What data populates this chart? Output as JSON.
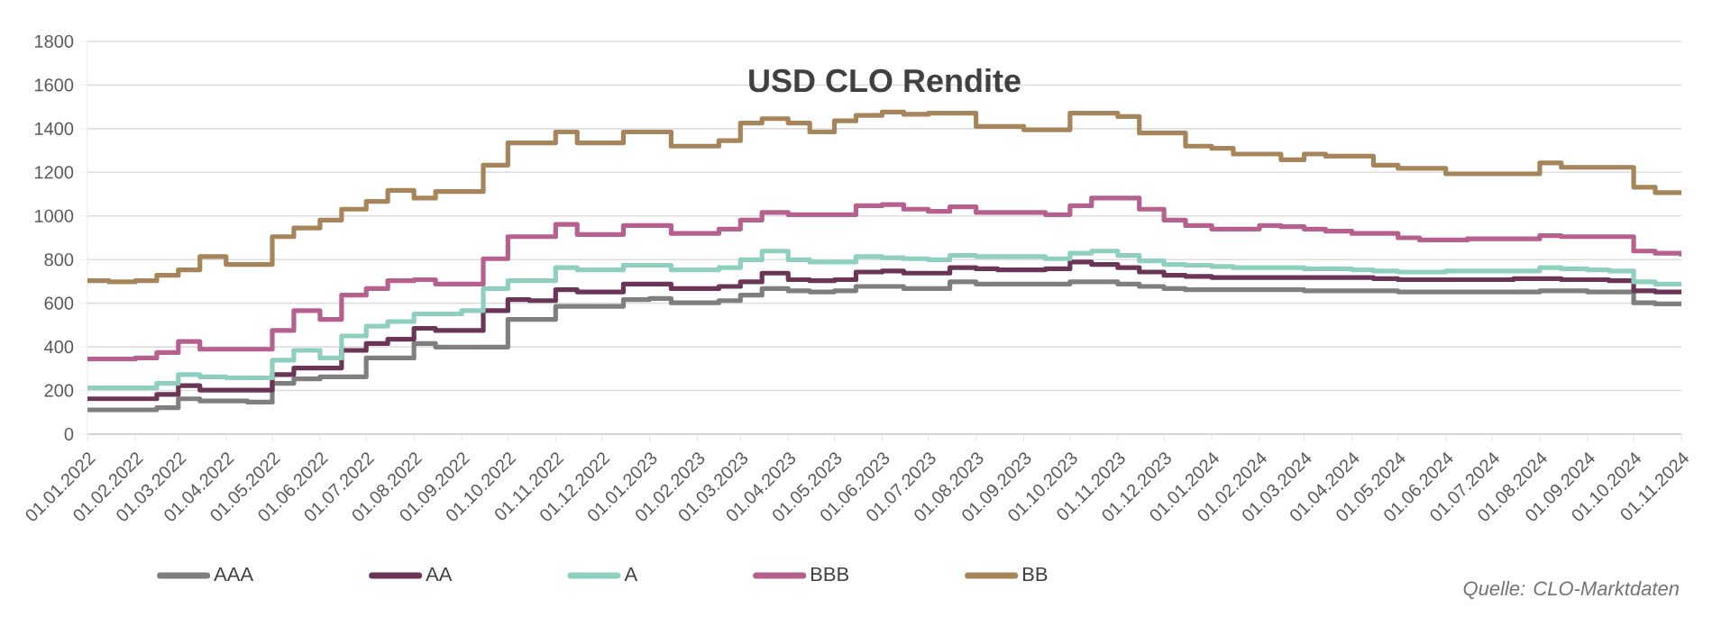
{
  "chart_data": {
    "type": "step",
    "title": "USD CLO Rendite",
    "x": [
      "2022-01-01",
      "2022-01-15",
      "2022-02-01",
      "2022-02-15",
      "2022-03-01",
      "2022-03-15",
      "2022-04-01",
      "2022-04-15",
      "2022-05-01",
      "2022-05-15",
      "2022-06-01",
      "2022-06-15",
      "2022-07-01",
      "2022-07-15",
      "2022-08-01",
      "2022-08-15",
      "2022-09-01",
      "2022-09-15",
      "2022-10-01",
      "2022-10-15",
      "2022-11-01",
      "2022-11-15",
      "2022-12-01",
      "2022-12-15",
      "2023-01-01",
      "2023-01-15",
      "2023-02-01",
      "2023-02-15",
      "2023-03-01",
      "2023-03-15",
      "2023-04-01",
      "2023-04-15",
      "2023-05-01",
      "2023-05-15",
      "2023-06-01",
      "2023-06-15",
      "2023-07-01",
      "2023-07-15",
      "2023-08-01",
      "2023-08-15",
      "2023-09-01",
      "2023-09-15",
      "2023-10-01",
      "2023-10-15",
      "2023-11-01",
      "2023-11-15",
      "2023-12-01",
      "2023-12-15",
      "2024-01-01",
      "2024-01-15",
      "2024-02-01",
      "2024-02-15",
      "2024-03-01",
      "2024-03-15",
      "2024-04-01",
      "2024-04-15",
      "2024-05-01",
      "2024-05-15",
      "2024-06-01",
      "2024-06-15",
      "2024-07-01",
      "2024-07-15",
      "2024-08-01",
      "2024-08-15",
      "2024-09-01",
      "2024-09-15",
      "2024-10-01",
      "2024-10-15",
      "2024-11-01"
    ],
    "series": [
      {
        "name": "AAA",
        "color": "#7f7f7f",
        "values": [
          111,
          111,
          111,
          121,
          162,
          152,
          152,
          147,
          233,
          253,
          263,
          263,
          349,
          349,
          415,
          399,
          399,
          399,
          526,
          526,
          586,
          586,
          586,
          617,
          622,
          602,
          602,
          612,
          637,
          667,
          657,
          652,
          657,
          677,
          677,
          667,
          667,
          698,
          688,
          688,
          688,
          688,
          698,
          698,
          688,
          677,
          667,
          662,
          662,
          662,
          662,
          662,
          657,
          657,
          657,
          657,
          652,
          652,
          652,
          652,
          652,
          652,
          657,
          657,
          652,
          652,
          602,
          597,
          597
        ]
      },
      {
        "name": "AA",
        "color": "#6b3557",
        "values": [
          162,
          162,
          162,
          182,
          222,
          202,
          202,
          202,
          273,
          303,
          303,
          384,
          415,
          435,
          485,
          475,
          475,
          566,
          617,
          612,
          662,
          652,
          652,
          688,
          688,
          667,
          667,
          677,
          698,
          738,
          708,
          703,
          708,
          743,
          748,
          738,
          738,
          763,
          758,
          753,
          753,
          758,
          789,
          778,
          763,
          743,
          728,
          723,
          718,
          718,
          718,
          718,
          718,
          718,
          718,
          713,
          708,
          708,
          708,
          708,
          708,
          713,
          713,
          708,
          708,
          703,
          657,
          652,
          647
        ]
      },
      {
        "name": "A",
        "color": "#8ecfc0",
        "values": [
          212,
          212,
          212,
          233,
          273,
          263,
          258,
          258,
          339,
          384,
          349,
          450,
          495,
          516,
          551,
          551,
          566,
          667,
          703,
          703,
          763,
          753,
          753,
          774,
          774,
          753,
          753,
          763,
          799,
          839,
          799,
          789,
          789,
          814,
          809,
          804,
          799,
          819,
          814,
          814,
          814,
          804,
          829,
          839,
          819,
          794,
          778,
          774,
          768,
          763,
          763,
          763,
          758,
          758,
          753,
          748,
          743,
          743,
          748,
          748,
          748,
          748,
          763,
          758,
          753,
          748,
          698,
          688,
          677
        ]
      },
      {
        "name": "BBB",
        "color": "#b5608f",
        "values": [
          344,
          344,
          349,
          374,
          425,
          389,
          389,
          389,
          475,
          566,
          526,
          637,
          667,
          703,
          708,
          688,
          688,
          804,
          905,
          905,
          961,
          915,
          915,
          956,
          956,
          920,
          920,
          940,
          981,
          1016,
          1006,
          1006,
          1006,
          1047,
          1052,
          1031,
          1021,
          1042,
          1016,
          1016,
          1016,
          1006,
          1047,
          1082,
          1082,
          1031,
          981,
          956,
          940,
          940,
          956,
          951,
          940,
          930,
          920,
          920,
          900,
          890,
          890,
          895,
          895,
          895,
          910,
          905,
          905,
          905,
          839,
          829,
          814
        ]
      },
      {
        "name": "BB",
        "color": "#a58559",
        "values": [
          703,
          698,
          703,
          728,
          753,
          814,
          778,
          778,
          905,
          945,
          981,
          1031,
          1067,
          1117,
          1082,
          1112,
          1112,
          1233,
          1335,
          1335,
          1385,
          1335,
          1335,
          1385,
          1385,
          1320,
          1320,
          1345,
          1426,
          1446,
          1426,
          1385,
          1436,
          1461,
          1476,
          1466,
          1471,
          1471,
          1410,
          1410,
          1395,
          1395,
          1471,
          1471,
          1456,
          1380,
          1380,
          1320,
          1310,
          1284,
          1284,
          1258,
          1284,
          1274,
          1274,
          1233,
          1218,
          1218,
          1193,
          1193,
          1193,
          1193,
          1243,
          1223,
          1223,
          1223,
          1132,
          1107,
          1102
        ]
      }
    ],
    "xlim": [
      "2022-01-01",
      "2024-11-01"
    ],
    "xticks": [
      {
        "value": "2022-01-01",
        "label": "01.01.2022"
      },
      {
        "value": "2022-02-01",
        "label": "01.02.2022"
      },
      {
        "value": "2022-03-01",
        "label": "01.03.2022"
      },
      {
        "value": "2022-04-01",
        "label": "01.04.2022"
      },
      {
        "value": "2022-05-01",
        "label": "01.05.2022"
      },
      {
        "value": "2022-06-01",
        "label": "01.06.2022"
      },
      {
        "value": "2022-07-01",
        "label": "01.07.2022"
      },
      {
        "value": "2022-08-01",
        "label": "01.08.2022"
      },
      {
        "value": "2022-09-01",
        "label": "01.09.2022"
      },
      {
        "value": "2022-10-01",
        "label": "01.10.2022"
      },
      {
        "value": "2022-11-01",
        "label": "01.11.2022"
      },
      {
        "value": "2022-12-01",
        "label": "01.12.2022"
      },
      {
        "value": "2023-01-01",
        "label": "01.01.2023"
      },
      {
        "value": "2023-02-01",
        "label": "01.02.2023"
      },
      {
        "value": "2023-03-01",
        "label": "01.03.2023"
      },
      {
        "value": "2023-04-01",
        "label": "01.04.2023"
      },
      {
        "value": "2023-05-01",
        "label": "01.05.2023"
      },
      {
        "value": "2023-06-01",
        "label": "01.06.2023"
      },
      {
        "value": "2023-07-01",
        "label": "01.07.2023"
      },
      {
        "value": "2023-08-01",
        "label": "01.08.2023"
      },
      {
        "value": "2023-09-01",
        "label": "01.09.2023"
      },
      {
        "value": "2023-10-01",
        "label": "01.10.2023"
      },
      {
        "value": "2023-11-01",
        "label": "01.11.2023"
      },
      {
        "value": "2023-12-01",
        "label": "01.12.2023"
      },
      {
        "value": "2024-01-01",
        "label": "01.01.2024"
      },
      {
        "value": "2024-02-01",
        "label": "01.02.2024"
      },
      {
        "value": "2024-03-01",
        "label": "01.03.2024"
      },
      {
        "value": "2024-04-01",
        "label": "01.04.2024"
      },
      {
        "value": "2024-05-01",
        "label": "01.05.2024"
      },
      {
        "value": "2024-06-01",
        "label": "01.06.2024"
      },
      {
        "value": "2024-07-01",
        "label": "01.07.2024"
      },
      {
        "value": "2024-08-01",
        "label": "01.08.2024"
      },
      {
        "value": "2024-09-01",
        "label": "01.09.2024"
      },
      {
        "value": "2024-10-01",
        "label": "01.10.2024"
      },
      {
        "value": "2024-11-01",
        "label": "01.11.2024"
      }
    ],
    "ylim": [
      0,
      1800
    ],
    "yticks": [
      0,
      200,
      400,
      600,
      800,
      1000,
      1200,
      1400,
      1600,
      1800
    ],
    "grid": "y",
    "legend": "bottom",
    "annotations": [
      "Quelle: CLO-Marktdaten"
    ]
  }
}
